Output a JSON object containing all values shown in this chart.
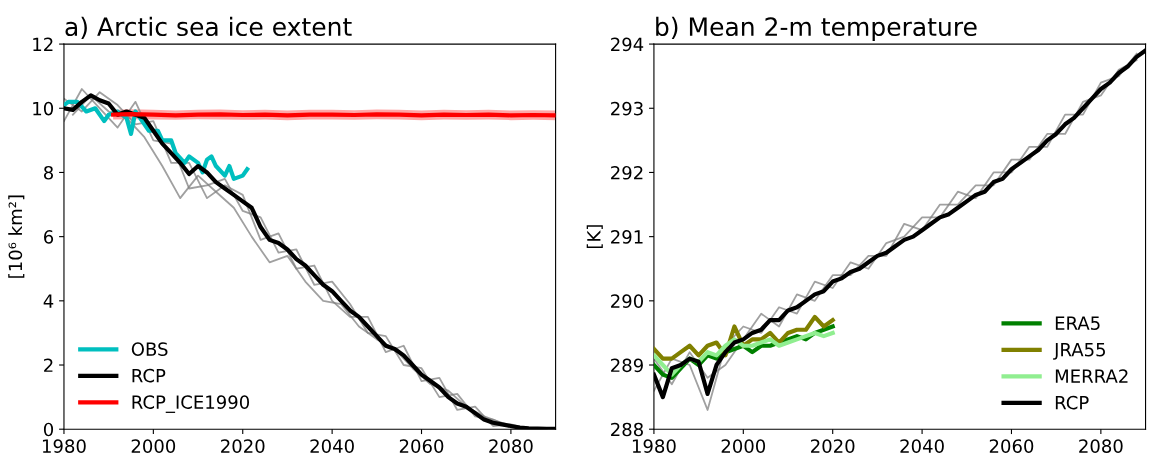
{
  "chart_data": [
    {
      "type": "line",
      "title": "a) Arctic sea ice extent",
      "ylabel": "[10⁶ km²]",
      "xlim": [
        1980,
        2090
      ],
      "xticks": [
        1980,
        2000,
        2020,
        2040,
        2060,
        2080
      ],
      "ylim": [
        0,
        12
      ],
      "yticks": [
        0,
        2,
        4,
        6,
        8,
        10,
        12
      ],
      "grid": false,
      "legend": "bottom left",
      "x": [
        1980,
        1984,
        1988,
        1992,
        1996,
        2000,
        2004,
        2008,
        2012,
        2016,
        2020,
        2024,
        2028,
        2032,
        2036,
        2040,
        2044,
        2048,
        2052,
        2056,
        2060,
        2064,
        2068,
        2072,
        2076,
        2080,
        2084,
        2088
      ],
      "series": [
        {
          "color": "#808080",
          "values": [
            9.6,
            10.6,
            10.0,
            9.4,
            10.2,
            9.0,
            8.9,
            7.5,
            7.6,
            7.8,
            6.8,
            6.6,
            5.5,
            5.6,
            4.5,
            4.6,
            3.9,
            3.0,
            2.9,
            2.0,
            1.9,
            1.0,
            1.1,
            0.4,
            0.3,
            0.05,
            0.02,
            0.0
          ]
        },
        {
          "color": "#808080",
          "values": [
            10.3,
            9.9,
            10.5,
            10.1,
            9.5,
            9.6,
            8.3,
            8.3,
            7.2,
            7.6,
            7.3,
            5.9,
            6.1,
            5.0,
            5.1,
            4.0,
            3.5,
            3.5,
            2.4,
            2.6,
            1.5,
            1.6,
            0.6,
            0.7,
            0.1,
            0.15,
            0.0,
            0.0
          ]
        },
        {
          "color": "#808080",
          "x": [
            1982,
            1986,
            1990,
            1994,
            1998,
            2002,
            2006,
            2010,
            2014,
            2018,
            2022,
            2026,
            2030,
            2034,
            2038,
            2042,
            2046,
            2050,
            2054,
            2058,
            2062,
            2066,
            2070,
            2074,
            2078,
            2082,
            2086,
            2090
          ],
          "values": [
            9.8,
            10.4,
            9.9,
            9.7,
            9.1,
            8.2,
            7.2,
            7.9,
            7.4,
            6.9,
            6.0,
            5.2,
            5.4,
            4.6,
            4.0,
            3.9,
            3.2,
            2.8,
            2.5,
            1.9,
            1.4,
            1.2,
            0.7,
            0.4,
            0.2,
            0.05,
            0.02,
            0.01
          ]
        },
        {
          "name": "OBS",
          "color": "#00bfbf",
          "x": [
            1980,
            1981,
            1983,
            1985,
            1987,
            1989,
            1990,
            1992,
            1994,
            1995,
            1996,
            1997,
            1999,
            2001,
            2002,
            2004,
            2005,
            2007,
            2008,
            2010,
            2011,
            2012,
            2013,
            2014,
            2016,
            2017,
            2018,
            2020,
            2021
          ],
          "values": [
            10.1,
            10.2,
            10.2,
            9.9,
            10.0,
            9.6,
            9.8,
            9.9,
            9.7,
            9.2,
            9.9,
            9.7,
            9.3,
            9.3,
            9.0,
            9.0,
            8.6,
            8.3,
            8.5,
            8.3,
            8.0,
            8.4,
            8.5,
            8.2,
            7.9,
            8.2,
            7.8,
            7.9,
            8.1
          ]
        },
        {
          "name": "RCP",
          "color": "#000000",
          "x": [
            1980,
            1982,
            1984,
            1986,
            1988,
            1990,
            1992,
            1994,
            1996,
            1998,
            2000,
            2002,
            2004,
            2006,
            2008,
            2010,
            2012,
            2014,
            2016,
            2018,
            2020,
            2022,
            2024,
            2026,
            2028,
            2030,
            2032,
            2034,
            2036,
            2038,
            2040,
            2042,
            2044,
            2046,
            2048,
            2050,
            2052,
            2054,
            2056,
            2058,
            2060,
            2062,
            2064,
            2066,
            2068,
            2070,
            2072,
            2074,
            2076,
            2078,
            2080,
            2082,
            2084,
            2086,
            2088,
            2090
          ],
          "values": [
            10.0,
            9.95,
            10.2,
            10.4,
            10.25,
            10.15,
            9.8,
            9.9,
            9.8,
            9.7,
            9.3,
            8.9,
            8.6,
            8.3,
            7.95,
            8.2,
            8.0,
            7.7,
            7.5,
            7.3,
            7.1,
            6.9,
            6.3,
            5.9,
            5.8,
            5.6,
            5.3,
            5.1,
            4.8,
            4.5,
            4.3,
            4.0,
            3.7,
            3.5,
            3.2,
            2.9,
            2.6,
            2.5,
            2.3,
            2.0,
            1.7,
            1.5,
            1.3,
            1.0,
            0.8,
            0.7,
            0.5,
            0.3,
            0.2,
            0.15,
            0.1,
            0.05,
            0.03,
            0.02,
            0.01,
            0.01
          ]
        },
        {
          "name": "RCP_ICE1990",
          "color": "#ff0000",
          "x": [
            1991,
            1995,
            2000,
            2005,
            2010,
            2015,
            2020,
            2025,
            2030,
            2035,
            2040,
            2045,
            2050,
            2055,
            2060,
            2065,
            2070,
            2075,
            2080,
            2085,
            2090
          ],
          "values": [
            9.8,
            9.82,
            9.8,
            9.78,
            9.8,
            9.81,
            9.79,
            9.8,
            9.78,
            9.8,
            9.8,
            9.79,
            9.81,
            9.8,
            9.78,
            9.8,
            9.79,
            9.8,
            9.78,
            9.79,
            9.78
          ],
          "lower": [
            9.65,
            9.66,
            9.65,
            9.64,
            9.66,
            9.65,
            9.64,
            9.65,
            9.63,
            9.65,
            9.65,
            9.64,
            9.66,
            9.65,
            9.63,
            9.65,
            9.64,
            9.65,
            9.63,
            9.64,
            9.63
          ],
          "upper": [
            9.95,
            9.97,
            9.95,
            9.93,
            9.95,
            9.96,
            9.94,
            9.95,
            9.93,
            9.95,
            9.95,
            9.94,
            9.96,
            9.95,
            9.93,
            9.95,
            9.94,
            9.95,
            9.93,
            9.94,
            9.93
          ]
        }
      ]
    },
    {
      "type": "line",
      "title": "b) Mean 2-m temperature",
      "ylabel": "[K]",
      "xlim": [
        1980,
        2090
      ],
      "xticks": [
        1980,
        2000,
        2020,
        2040,
        2060,
        2080
      ],
      "ylim": [
        288,
        294
      ],
      "yticks": [
        288,
        289,
        290,
        291,
        292,
        293,
        294
      ],
      "grid": false,
      "legend": "bottom right",
      "x": [
        1980,
        1984,
        1988,
        1992,
        1996,
        2000,
        2004,
        2008,
        2012,
        2016,
        2020,
        2024,
        2028,
        2032,
        2036,
        2040,
        2044,
        2048,
        2052,
        2056,
        2060,
        2064,
        2068,
        2072,
        2076,
        2080,
        2084,
        2088
      ],
      "series": [
        {
          "color": "#808080",
          "values": [
            288.6,
            289.1,
            289.0,
            288.3,
            289.3,
            289.6,
            289.5,
            289.9,
            289.8,
            290.3,
            290.2,
            290.6,
            290.5,
            290.9,
            291.0,
            291.3,
            291.3,
            291.7,
            291.6,
            292.0,
            292.0,
            292.4,
            292.4,
            292.9,
            292.9,
            293.4,
            293.5,
            293.85
          ]
        },
        {
          "color": "#808080",
          "values": [
            289.1,
            288.7,
            289.2,
            288.8,
            289.0,
            289.4,
            289.8,
            289.6,
            290.1,
            290.0,
            290.4,
            290.4,
            290.7,
            290.7,
            291.2,
            291.1,
            291.5,
            291.5,
            291.8,
            291.8,
            292.2,
            292.2,
            292.6,
            292.6,
            293.1,
            293.2,
            293.6,
            293.75
          ]
        },
        {
          "name": "ERA5",
          "color": "#008000",
          "x": [
            1980,
            1982,
            1984,
            1986,
            1988,
            1990,
            1992,
            1994,
            1996,
            1998,
            2000,
            2002,
            2004,
            2006,
            2008,
            2010,
            2012,
            2014,
            2016,
            2018,
            2020
          ],
          "values": [
            289.0,
            288.85,
            288.8,
            288.95,
            289.1,
            289.0,
            289.15,
            289.1,
            289.2,
            289.25,
            289.3,
            289.2,
            289.3,
            289.3,
            289.35,
            289.4,
            289.45,
            289.4,
            289.5,
            289.55,
            289.6
          ]
        },
        {
          "name": "JRA55",
          "color": "#808000",
          "x": [
            1980,
            1982,
            1984,
            1986,
            1988,
            1990,
            1992,
            1994,
            1996,
            1998,
            2000,
            2002,
            2004,
            2006,
            2008,
            2010,
            2012,
            2014,
            2016,
            2018,
            2020
          ],
          "values": [
            289.25,
            289.1,
            289.1,
            289.2,
            289.3,
            289.15,
            289.3,
            289.35,
            289.15,
            289.6,
            289.3,
            289.4,
            289.4,
            289.5,
            289.35,
            289.5,
            289.55,
            289.55,
            289.75,
            289.6,
            289.7
          ]
        },
        {
          "name": "MERRA2",
          "color": "#90ee90",
          "x": [
            1980,
            1982,
            1984,
            1986,
            1988,
            1990,
            1992,
            1994,
            1996,
            1998,
            2000,
            2002,
            2004,
            2006,
            2008,
            2010,
            2012,
            2014,
            2016,
            2018,
            2020
          ],
          "values": [
            289.15,
            289.0,
            288.85,
            289.0,
            289.1,
            289.05,
            289.2,
            289.15,
            289.3,
            289.4,
            289.3,
            289.3,
            289.35,
            289.4,
            289.3,
            289.35,
            289.4,
            289.45,
            289.5,
            289.45,
            289.5
          ]
        },
        {
          "name": "RCP",
          "color": "#000000",
          "x": [
            1980,
            1982,
            1984,
            1986,
            1988,
            1990,
            1992,
            1994,
            1996,
            1998,
            2000,
            2002,
            2004,
            2006,
            2008,
            2010,
            2012,
            2014,
            2016,
            2018,
            2020,
            2022,
            2024,
            2026,
            2028,
            2030,
            2032,
            2034,
            2036,
            2038,
            2040,
            2042,
            2044,
            2046,
            2048,
            2050,
            2052,
            2054,
            2056,
            2058,
            2060,
            2062,
            2064,
            2066,
            2068,
            2070,
            2072,
            2074,
            2076,
            2078,
            2080,
            2082,
            2084,
            2086,
            2088,
            2090
          ],
          "values": [
            288.85,
            288.5,
            288.95,
            289.0,
            289.1,
            289.05,
            288.55,
            289.0,
            289.2,
            289.35,
            289.4,
            289.5,
            289.55,
            289.7,
            289.7,
            289.85,
            289.9,
            290.0,
            290.1,
            290.15,
            290.3,
            290.35,
            290.45,
            290.5,
            290.6,
            290.7,
            290.75,
            290.85,
            290.95,
            291.0,
            291.1,
            291.2,
            291.3,
            291.35,
            291.45,
            291.55,
            291.65,
            291.7,
            291.85,
            291.9,
            292.05,
            292.15,
            292.25,
            292.35,
            292.5,
            292.6,
            292.75,
            292.85,
            293.0,
            293.15,
            293.3,
            293.4,
            293.55,
            293.65,
            293.8,
            293.9
          ]
        }
      ]
    }
  ]
}
